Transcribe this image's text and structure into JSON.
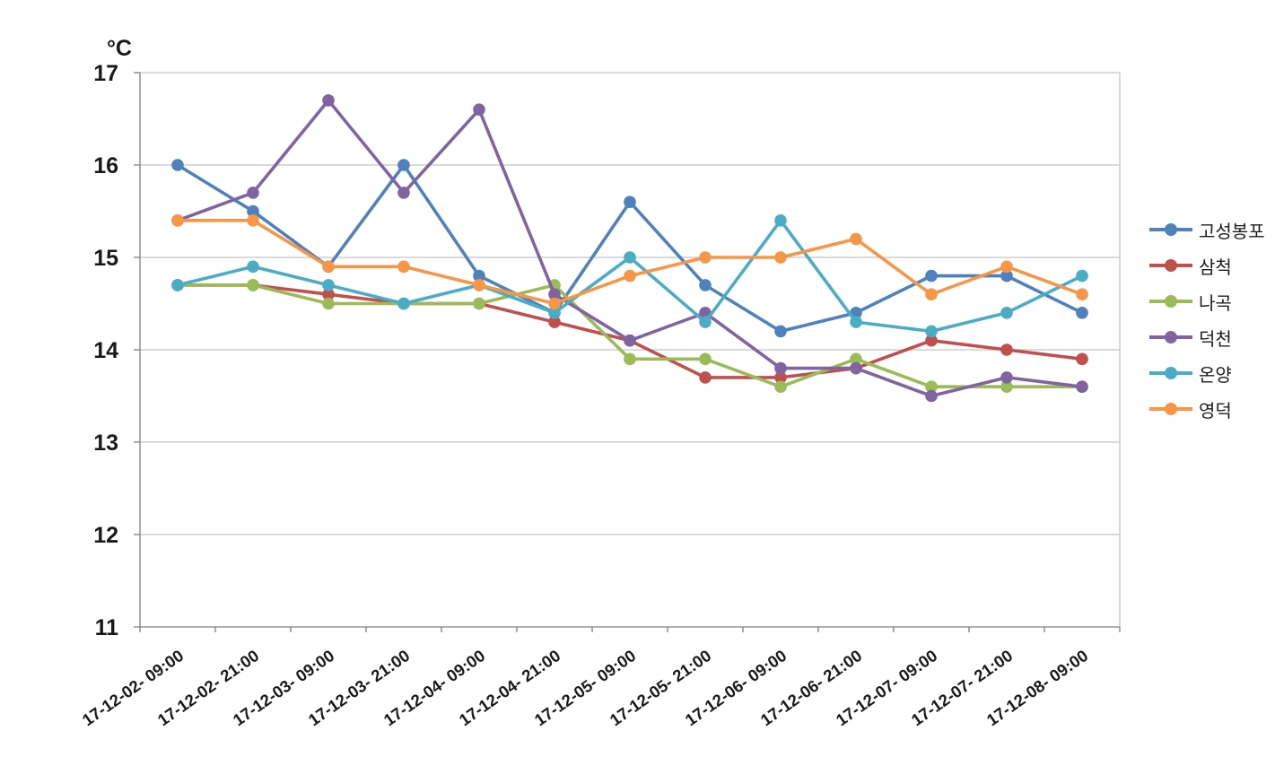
{
  "chart_data": {
    "type": "line",
    "title": "",
    "xlabel": "",
    "ylabel": "°C",
    "ylim": [
      11,
      17
    ],
    "ytick_step": 1,
    "ytick_labels": [
      "11",
      "12",
      "13",
      "14",
      "15",
      "16",
      "17"
    ],
    "grid": true,
    "legend_position": "right",
    "categories": [
      "17-12-02- 09:00",
      "17-12-02- 21:00",
      "17-12-03- 09:00",
      "17-12-03- 21:00",
      "17-12-04- 09:00",
      "17-12-04- 21:00",
      "17-12-05- 09:00",
      "17-12-05- 21:00",
      "17-12-06- 09:00",
      "17-12-06- 21:00",
      "17-12-07- 09:00",
      "17-12-07- 21:00",
      "17-12-08- 09:00"
    ],
    "series": [
      {
        "id": "goseong-bongpo",
        "name": "고성봉포",
        "color": "#4F81BD",
        "values": [
          16.0,
          15.5,
          14.9,
          16.0,
          14.8,
          14.4,
          15.6,
          14.7,
          14.2,
          14.4,
          14.8,
          14.8,
          14.4
        ]
      },
      {
        "id": "samcheok",
        "name": "삼척",
        "color": "#C0504D",
        "values": [
          14.7,
          14.7,
          14.6,
          14.5,
          14.5,
          14.3,
          14.1,
          13.7,
          13.7,
          13.8,
          14.1,
          14.0,
          13.9
        ]
      },
      {
        "id": "nagok",
        "name": "나곡",
        "color": "#9BBB59",
        "values": [
          14.7,
          14.7,
          14.5,
          14.5,
          14.5,
          14.7,
          13.9,
          13.9,
          13.6,
          13.9,
          13.6,
          13.6,
          13.6
        ]
      },
      {
        "id": "deokcheon",
        "name": "덕천",
        "color": "#8064A2",
        "values": [
          15.4,
          15.7,
          16.7,
          15.7,
          16.6,
          14.6,
          14.1,
          14.4,
          13.8,
          13.8,
          13.5,
          13.7,
          13.6
        ]
      },
      {
        "id": "onyang",
        "name": "온양",
        "color": "#4BACC6",
        "values": [
          14.7,
          14.9,
          14.7,
          14.5,
          14.7,
          14.4,
          15.0,
          14.3,
          15.4,
          14.3,
          14.2,
          14.4,
          14.8
        ]
      },
      {
        "id": "yeongdeok",
        "name": "영덕",
        "color": "#F79646",
        "values": [
          15.4,
          15.4,
          14.9,
          14.9,
          14.7,
          14.5,
          14.8,
          15.0,
          15.0,
          15.2,
          14.6,
          14.9,
          14.6
        ]
      }
    ],
    "style": {
      "gridline_color": "#c3c3c3",
      "axis_color": "#7f7f7f",
      "tick_label_color": "#191919",
      "x_label_rotation_deg": -35
    }
  }
}
